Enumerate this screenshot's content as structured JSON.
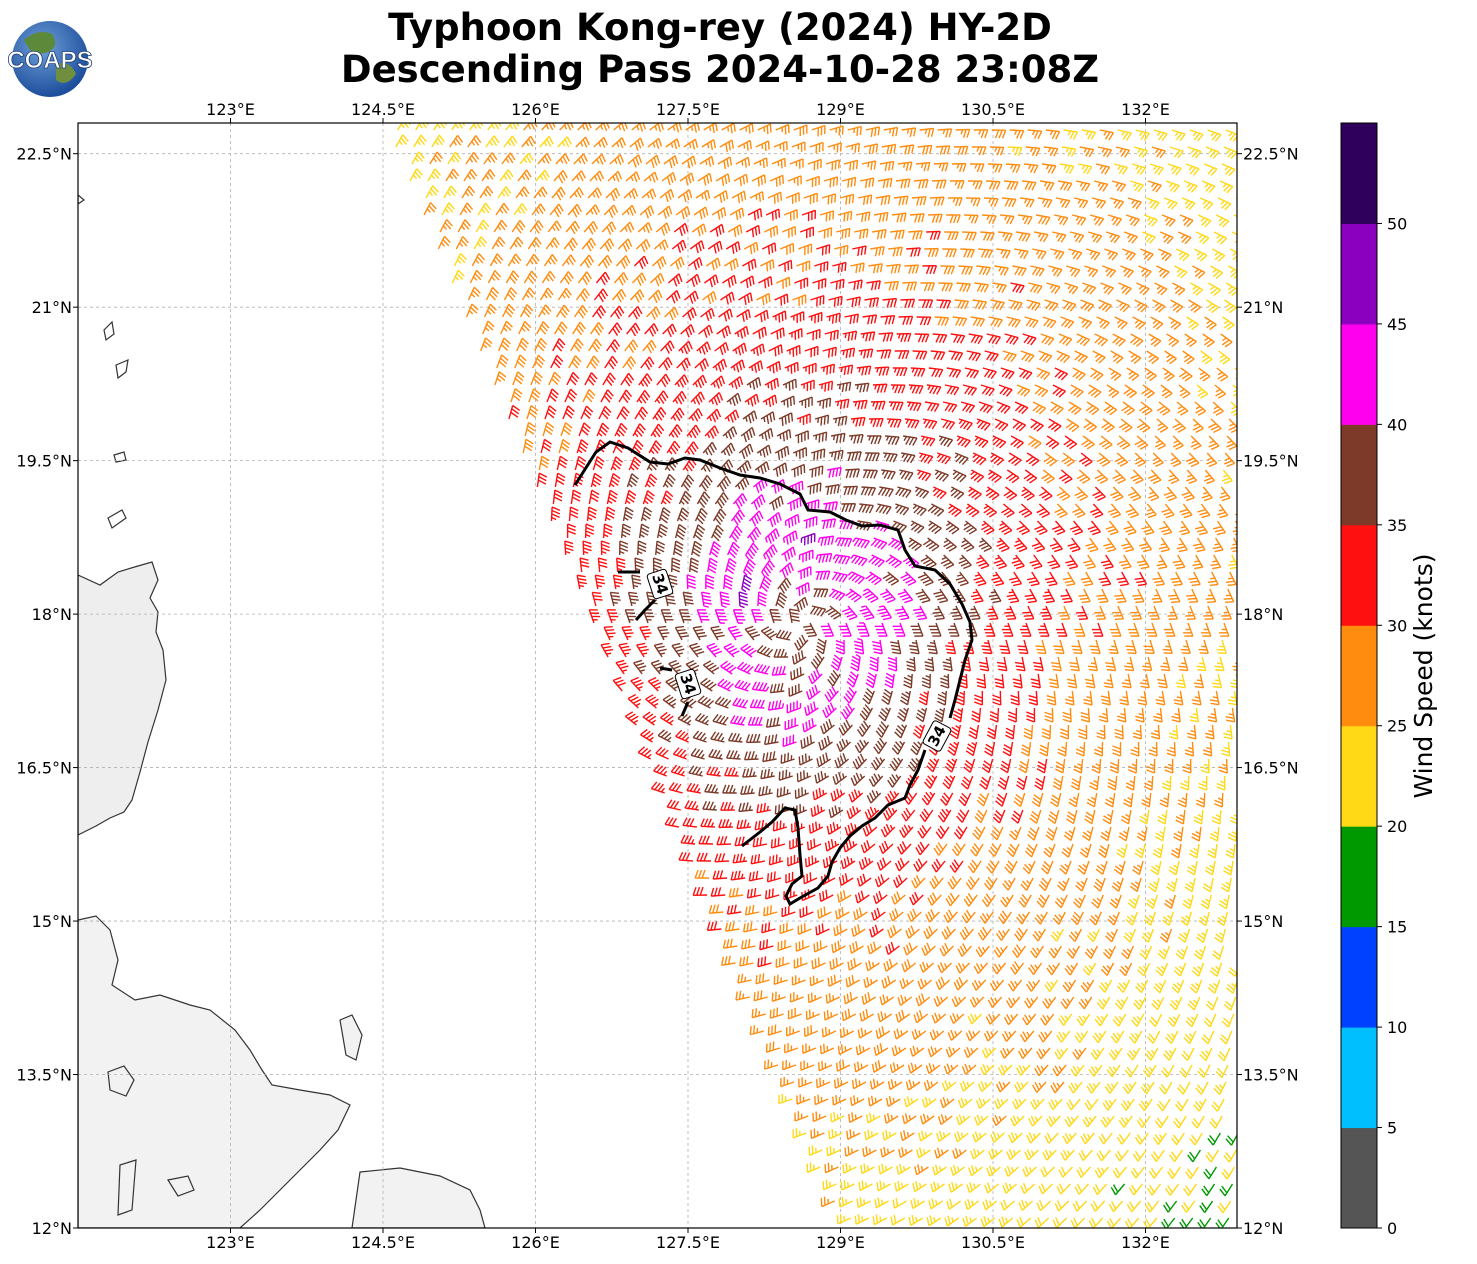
{
  "title": {
    "line1": "Typhoon Kong-rey (2024) HY-2D",
    "line2": "Descending Pass 2024-10-28 23:08Z"
  },
  "logo": {
    "text": "COAPS"
  },
  "map": {
    "lon_range": [
      121.5,
      132.9
    ],
    "lat_range": [
      12.0,
      22.8
    ],
    "lon_ticks": [
      "123°E",
      "124.5°E",
      "126°E",
      "127.5°E",
      "129°E",
      "130.5°E",
      "132°E"
    ],
    "lon_tick_values": [
      123,
      124.5,
      126,
      127.5,
      129,
      130.5,
      132
    ],
    "lat_ticks": [
      "12°N",
      "13.5°N",
      "15°N",
      "16.5°N",
      "18°N",
      "19.5°N",
      "21°N",
      "22.5°N"
    ],
    "lat_tick_values": [
      12,
      13.5,
      15,
      16.5,
      18,
      19.5,
      21,
      22.5
    ],
    "contour_label": "34",
    "storm_center": [
      128.6,
      17.9
    ]
  },
  "colorbar": {
    "label": "Wind Speed (knots)",
    "ticks": [
      "0",
      "5",
      "10",
      "15",
      "20",
      "25",
      "30",
      "35",
      "40",
      "45",
      "50"
    ],
    "colors": [
      "#555555",
      "#00bfff",
      "#0040ff",
      "#009900",
      "#ffd816",
      "#ff8c0f",
      "#ff1010",
      "#7e3a28",
      "#ff00ee",
      "#8a00be",
      "#2f005c"
    ]
  }
}
